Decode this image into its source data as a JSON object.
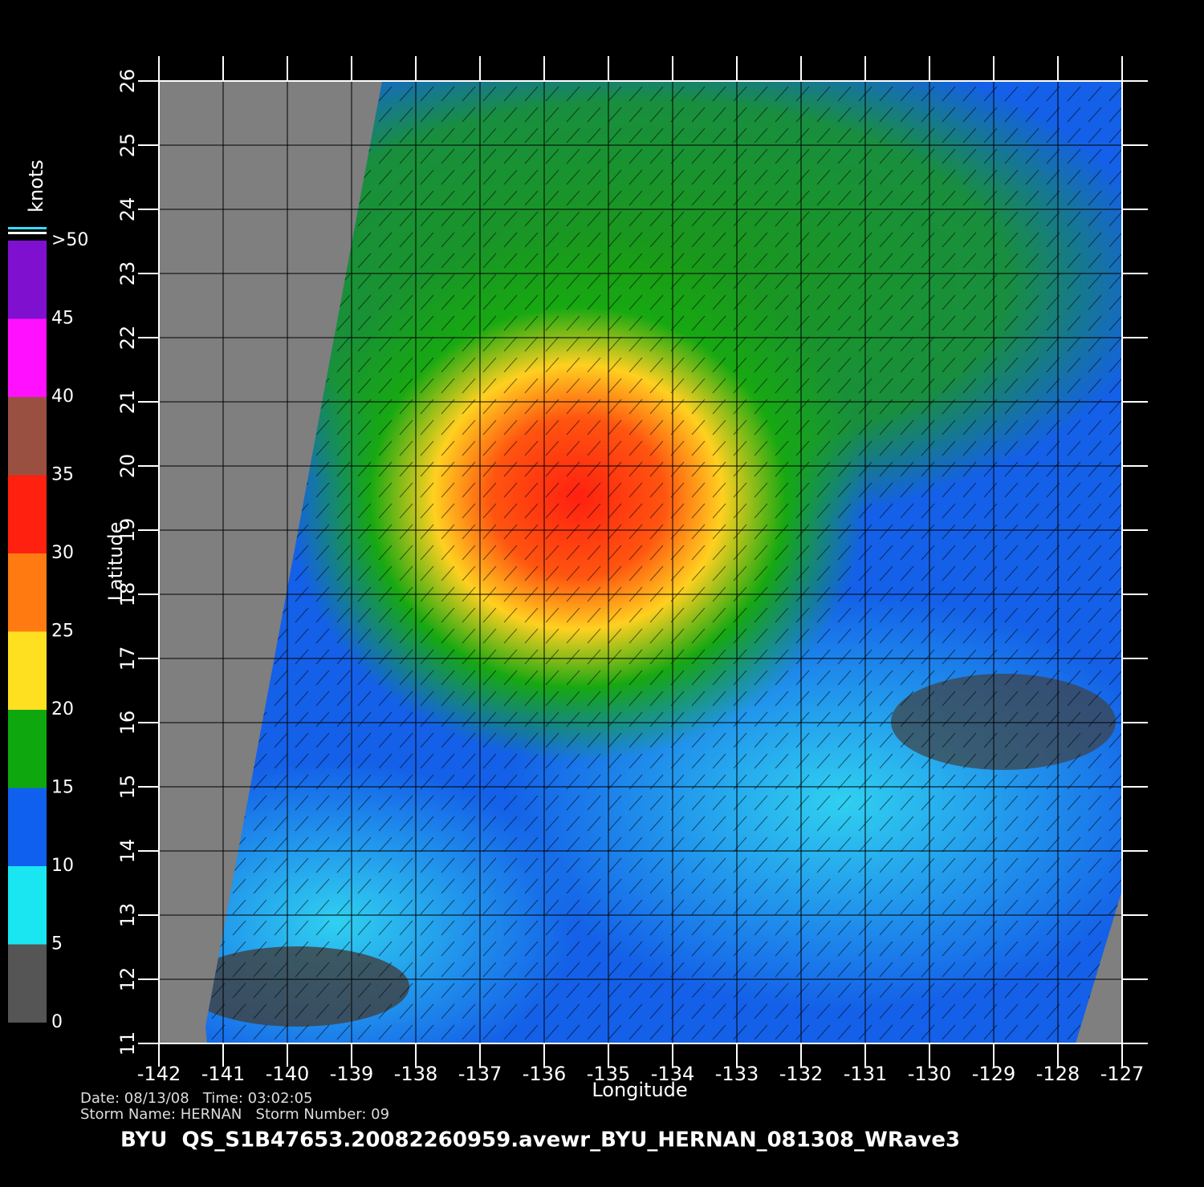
{
  "map": {
    "xlabel": "Longitude",
    "ylabel": "Latitude",
    "xlim": [
      -142,
      -127
    ],
    "ylim": [
      11,
      26
    ],
    "xticks": [
      -142,
      -141,
      -140,
      -139,
      -138,
      -137,
      -136,
      -135,
      -134,
      -133,
      -132,
      -131,
      -130,
      -129,
      -128,
      -127
    ],
    "yticks": [
      11,
      12,
      13,
      14,
      15,
      16,
      17,
      18,
      19,
      20,
      21,
      22,
      23,
      24,
      25,
      26
    ],
    "grid": true
  },
  "colorbar": {
    "label": "knots",
    "lim": [
      0,
      50
    ],
    "ticks": [
      0,
      5,
      10,
      15,
      20,
      25,
      30,
      35,
      40,
      45,
      {
        "value": 50,
        "label": ">50"
      }
    ],
    "colors": [
      "#555555",
      "#19e6f0",
      "#1060f0",
      "#0ea80e",
      "#ffe020",
      "#ff7a10",
      "#ff2010",
      "#9a5040",
      "#ff10ff",
      "#8010d0"
    ]
  },
  "footer": {
    "date_line": "Date: 08/13/08   Time: 03:02:05",
    "storm_line": "Storm Name: HERNAN   Storm Number: 09",
    "file": "BYU  QS_S1B47653.20082260959.avewr_BYU_HERNAN_081308_WRave3"
  }
}
